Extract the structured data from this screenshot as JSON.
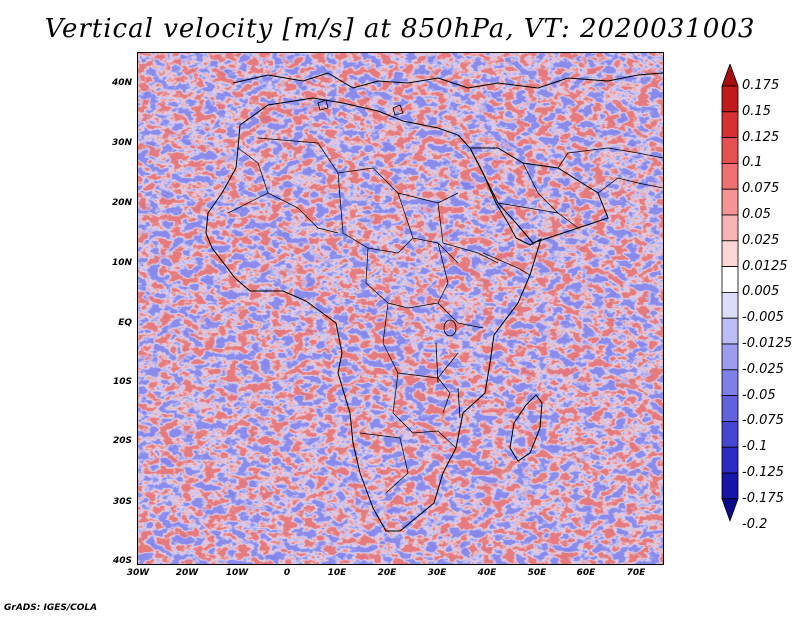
{
  "title": "Vertical velocity [m/s] at 850hPa, VT: 2020031003",
  "footer": "GrADS: IGES/COLA",
  "map": {
    "lat_labels": [
      "40N",
      "30N",
      "20N",
      "10N",
      "EQ",
      "10S",
      "20S",
      "30S",
      "40S"
    ],
    "lon_labels": [
      "30W",
      "20W",
      "10W",
      "0",
      "10E",
      "20E",
      "30E",
      "40E",
      "50E",
      "60E",
      "70E"
    ],
    "lat_range": [
      -40,
      45
    ],
    "lon_range": [
      -30,
      75
    ],
    "field_colors": {
      "upward": "#e04a4a",
      "downward": "#4a4ae0",
      "neutral": "#ffffff"
    }
  },
  "colorbar": {
    "labels": [
      "0.175",
      "0.15",
      "0.125",
      "0.1",
      "0.075",
      "0.05",
      "0.025",
      "0.0125",
      "0.005",
      "-0.005",
      "-0.0125",
      "-0.025",
      "-0.05",
      "-0.075",
      "-0.1",
      "-0.125",
      "-0.175",
      "-0.2"
    ],
    "colors": [
      "#a80e0e",
      "#c21a1a",
      "#d83030",
      "#e55050",
      "#ee7070",
      "#f49494",
      "#f8b4b4",
      "#fbd6d6",
      "#ffffff",
      "#dcdcfb",
      "#bcbcf6",
      "#9d9df0",
      "#7f7fe8",
      "#6262de",
      "#4646d2",
      "#2c2cc2",
      "#1515a8",
      "#0a0a8a"
    ]
  }
}
